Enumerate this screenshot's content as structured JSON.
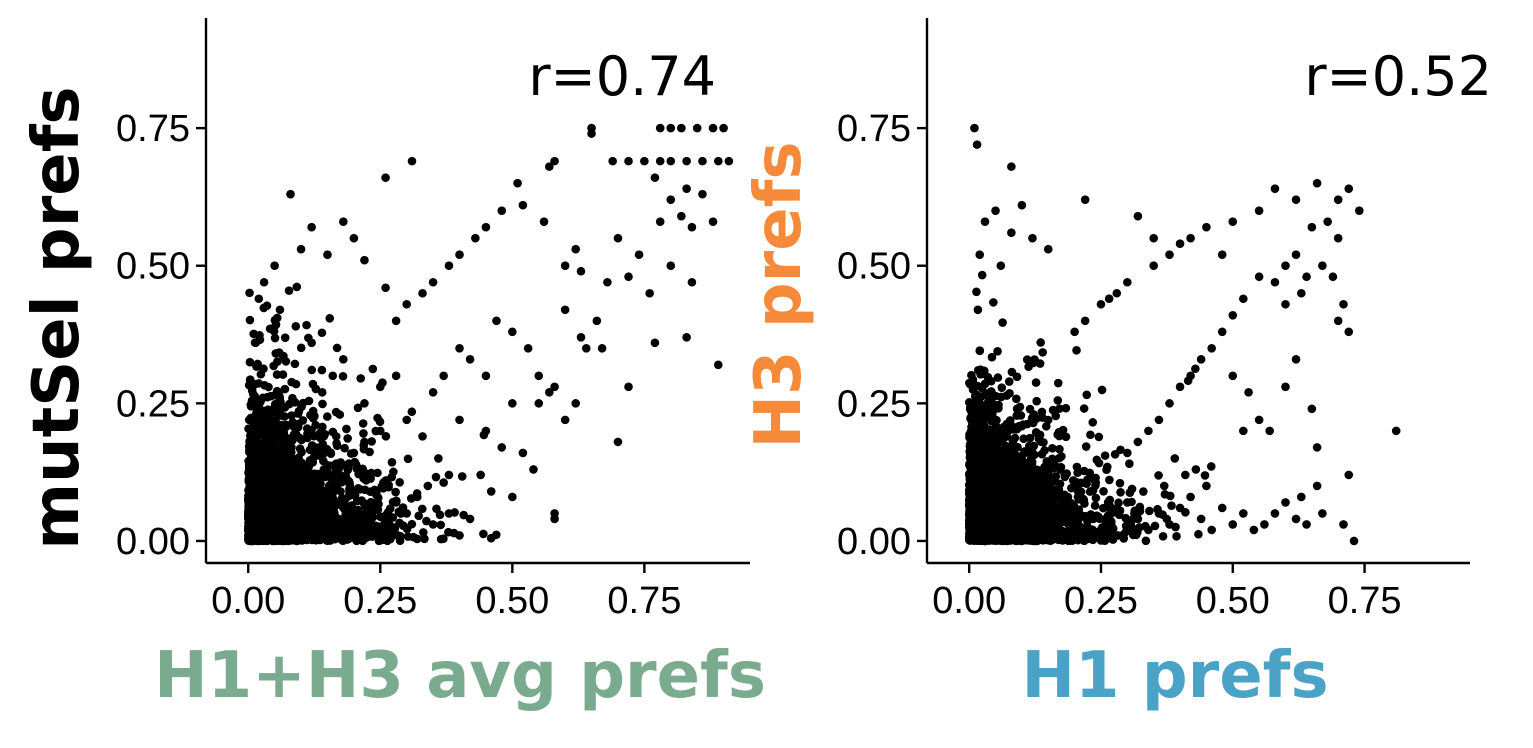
{
  "colors": {
    "point": "#000000",
    "xlabel_left": "#7aab8f",
    "ylabel_right": "#f58a3a",
    "xlabel_right": "#4aa2c7"
  },
  "chart_data": [
    {
      "type": "scatter",
      "ylabel": "mutSel prefs",
      "xlabel": "H1+H3 avg prefs",
      "annotation": "r=0.74",
      "xlim": [
        -0.08,
        0.95
      ],
      "ylim": [
        -0.04,
        0.95
      ],
      "xticks": [
        "0.00",
        "0.25",
        "0.50",
        "0.75"
      ],
      "yticks": [
        "0.00",
        "0.25",
        "0.50",
        "0.75"
      ],
      "grid": false,
      "legend": "none",
      "n_points_approx": 3000,
      "points": [
        [
          0.65,
          0.75
        ],
        [
          0.78,
          0.75
        ],
        [
          0.8,
          0.75
        ],
        [
          0.82,
          0.75
        ],
        [
          0.85,
          0.75
        ],
        [
          0.88,
          0.75
        ],
        [
          0.9,
          0.75
        ],
        [
          0.69,
          0.69
        ],
        [
          0.72,
          0.69
        ],
        [
          0.75,
          0.69
        ],
        [
          0.78,
          0.69
        ],
        [
          0.8,
          0.69
        ],
        [
          0.83,
          0.69
        ],
        [
          0.86,
          0.69
        ],
        [
          0.89,
          0.69
        ],
        [
          0.91,
          0.69
        ],
        [
          0.31,
          0.69
        ],
        [
          0.58,
          0.69
        ],
        [
          0.57,
          0.68
        ],
        [
          0.65,
          0.74
        ],
        [
          0.26,
          0.66
        ],
        [
          0.51,
          0.65
        ],
        [
          0.08,
          0.63
        ],
        [
          0.77,
          0.66
        ],
        [
          0.83,
          0.64
        ],
        [
          0.86,
          0.63
        ],
        [
          0.8,
          0.62
        ],
        [
          0.82,
          0.59
        ],
        [
          0.84,
          0.57
        ],
        [
          0.78,
          0.58
        ],
        [
          0.88,
          0.58
        ],
        [
          0.7,
          0.55
        ],
        [
          0.74,
          0.52
        ],
        [
          0.72,
          0.48
        ],
        [
          0.76,
          0.45
        ],
        [
          0.8,
          0.5
        ],
        [
          0.84,
          0.47
        ],
        [
          0.89,
          0.32
        ],
        [
          0.83,
          0.37
        ],
        [
          0.77,
          0.36
        ],
        [
          0.62,
          0.53
        ],
        [
          0.6,
          0.5
        ],
        [
          0.56,
          0.58
        ],
        [
          0.52,
          0.61
        ],
        [
          0.48,
          0.6
        ],
        [
          0.45,
          0.57
        ],
        [
          0.43,
          0.55
        ],
        [
          0.4,
          0.52
        ],
        [
          0.38,
          0.5
        ],
        [
          0.35,
          0.47
        ],
        [
          0.33,
          0.45
        ],
        [
          0.3,
          0.43
        ],
        [
          0.28,
          0.4
        ],
        [
          0.26,
          0.46
        ],
        [
          0.22,
          0.51
        ],
        [
          0.2,
          0.55
        ],
        [
          0.18,
          0.58
        ],
        [
          0.12,
          0.57
        ],
        [
          0.1,
          0.53
        ],
        [
          0.15,
          0.52
        ],
        [
          0.05,
          0.5
        ],
        [
          0.02,
          0.44
        ],
        [
          0.03,
          0.47
        ],
        [
          0.06,
          0.42
        ],
        [
          0.09,
          0.39
        ],
        [
          0.12,
          0.36
        ],
        [
          0.47,
          0.4
        ],
        [
          0.5,
          0.38
        ],
        [
          0.53,
          0.35
        ],
        [
          0.55,
          0.3
        ],
        [
          0.58,
          0.28
        ],
        [
          0.62,
          0.25
        ],
        [
          0.6,
          0.22
        ],
        [
          0.57,
          0.27
        ],
        [
          0.55,
          0.25
        ],
        [
          0.5,
          0.25
        ],
        [
          0.45,
          0.3
        ],
        [
          0.42,
          0.33
        ],
        [
          0.4,
          0.35
        ],
        [
          0.37,
          0.3
        ],
        [
          0.35,
          0.27
        ],
        [
          0.4,
          0.22
        ],
        [
          0.45,
          0.2
        ],
        [
          0.48,
          0.17
        ],
        [
          0.44,
          0.12
        ],
        [
          0.46,
          0.09
        ],
        [
          0.5,
          0.08
        ],
        [
          0.54,
          0.13
        ],
        [
          0.52,
          0.16
        ],
        [
          0.58,
          0.04
        ],
        [
          0.58,
          0.05
        ],
        [
          0.7,
          0.18
        ],
        [
          0.72,
          0.28
        ],
        [
          0.63,
          0.37
        ],
        [
          0.64,
          0.35
        ],
        [
          0.67,
          0.35
        ],
        [
          0.6,
          0.42
        ],
        [
          0.66,
          0.4
        ],
        [
          0.68,
          0.47
        ],
        [
          0.63,
          0.49
        ],
        [
          0.3,
          0.22
        ],
        [
          0.33,
          0.19
        ],
        [
          0.36,
          0.15
        ],
        [
          0.38,
          0.12
        ],
        [
          0.34,
          0.1
        ],
        [
          0.32,
          0.08
        ],
        [
          0.3,
          0.05
        ],
        [
          0.28,
          0.07
        ],
        [
          0.25,
          0.2
        ],
        [
          0.22,
          0.18
        ],
        [
          0.2,
          0.16
        ],
        [
          0.22,
          0.25
        ],
        [
          0.25,
          0.28
        ],
        [
          0.28,
          0.3
        ],
        [
          0.18,
          0.33
        ],
        [
          0.16,
          0.3
        ],
        [
          0.14,
          0.27
        ],
        [
          0.4,
          0.01
        ],
        [
          0.46,
          0.005
        ],
        [
          0.42,
          0.04
        ],
        [
          0.38,
          0.05
        ],
        [
          0.35,
          0.03
        ],
        [
          0.26,
          0.04
        ],
        [
          0.24,
          0.01
        ]
      ]
    },
    {
      "type": "scatter",
      "ylabel": "H3 prefs",
      "xlabel": "H1 prefs",
      "annotation": "r=0.52",
      "xlim": [
        -0.08,
        0.95
      ],
      "ylim": [
        -0.04,
        0.95
      ],
      "xticks": [
        "0.00",
        "0.25",
        "0.50",
        "0.75"
      ],
      "yticks": [
        "0.00",
        "0.25",
        "0.50",
        "0.75"
      ],
      "grid": false,
      "legend": "none",
      "n_points_approx": 3000,
      "points": [
        [
          0.01,
          0.75
        ],
        [
          0.015,
          0.72
        ],
        [
          0.08,
          0.68
        ],
        [
          0.81,
          0.2
        ],
        [
          0.73,
          0.0
        ],
        [
          0.71,
          0.03
        ],
        [
          0.72,
          0.12
        ],
        [
          0.66,
          0.65
        ],
        [
          0.72,
          0.64
        ],
        [
          0.74,
          0.6
        ],
        [
          0.7,
          0.62
        ],
        [
          0.62,
          0.62
        ],
        [
          0.58,
          0.64
        ],
        [
          0.68,
          0.58
        ],
        [
          0.65,
          0.57
        ],
        [
          0.7,
          0.55
        ],
        [
          0.62,
          0.52
        ],
        [
          0.6,
          0.5
        ],
        [
          0.64,
          0.48
        ],
        [
          0.67,
          0.5
        ],
        [
          0.69,
          0.48
        ],
        [
          0.71,
          0.43
        ],
        [
          0.72,
          0.38
        ],
        [
          0.7,
          0.4
        ],
        [
          0.63,
          0.45
        ],
        [
          0.6,
          0.43
        ],
        [
          0.58,
          0.47
        ],
        [
          0.55,
          0.48
        ],
        [
          0.52,
          0.44
        ],
        [
          0.5,
          0.41
        ],
        [
          0.48,
          0.38
        ],
        [
          0.46,
          0.35
        ],
        [
          0.44,
          0.33
        ],
        [
          0.42,
          0.3
        ],
        [
          0.4,
          0.28
        ],
        [
          0.38,
          0.25
        ],
        [
          0.36,
          0.22
        ],
        [
          0.34,
          0.2
        ],
        [
          0.32,
          0.18
        ],
        [
          0.3,
          0.16
        ],
        [
          0.4,
          0.54
        ],
        [
          0.38,
          0.52
        ],
        [
          0.35,
          0.5
        ],
        [
          0.3,
          0.47
        ],
        [
          0.28,
          0.45
        ],
        [
          0.25,
          0.43
        ],
        [
          0.22,
          0.4
        ],
        [
          0.2,
          0.38
        ],
        [
          0.55,
          0.6
        ],
        [
          0.5,
          0.58
        ],
        [
          0.45,
          0.57
        ],
        [
          0.42,
          0.55
        ],
        [
          0.48,
          0.52
        ],
        [
          0.35,
          0.55
        ],
        [
          0.32,
          0.59
        ],
        [
          0.22,
          0.62
        ],
        [
          0.1,
          0.61
        ],
        [
          0.05,
          0.6
        ],
        [
          0.03,
          0.58
        ],
        [
          0.08,
          0.56
        ],
        [
          0.12,
          0.55
        ],
        [
          0.15,
          0.53
        ],
        [
          0.06,
          0.5
        ],
        [
          0.02,
          0.52
        ],
        [
          0.5,
          0.3
        ],
        [
          0.53,
          0.27
        ],
        [
          0.55,
          0.22
        ],
        [
          0.57,
          0.2
        ],
        [
          0.52,
          0.2
        ],
        [
          0.6,
          0.28
        ],
        [
          0.62,
          0.33
        ],
        [
          0.65,
          0.24
        ],
        [
          0.66,
          0.17
        ],
        [
          0.58,
          0.05
        ],
        [
          0.6,
          0.07
        ],
        [
          0.62,
          0.04
        ],
        [
          0.64,
          0.03
        ],
        [
          0.56,
          0.03
        ],
        [
          0.54,
          0.02
        ],
        [
          0.52,
          0.05
        ],
        [
          0.5,
          0.03
        ],
        [
          0.48,
          0.06
        ],
        [
          0.46,
          0.02
        ],
        [
          0.44,
          0.04
        ],
        [
          0.42,
          0.08
        ],
        [
          0.4,
          0.06
        ],
        [
          0.38,
          0.03
        ],
        [
          0.36,
          0.05
        ],
        [
          0.34,
          0.02
        ],
        [
          0.32,
          0.04
        ],
        [
          0.3,
          0.07
        ],
        [
          0.66,
          0.1
        ],
        [
          0.63,
          0.08
        ],
        [
          0.67,
          0.05
        ],
        [
          0.45,
          0.1
        ],
        [
          0.43,
          0.13
        ],
        [
          0.41,
          0.12
        ],
        [
          0.39,
          0.15
        ],
        [
          0.37,
          0.1
        ]
      ]
    }
  ]
}
